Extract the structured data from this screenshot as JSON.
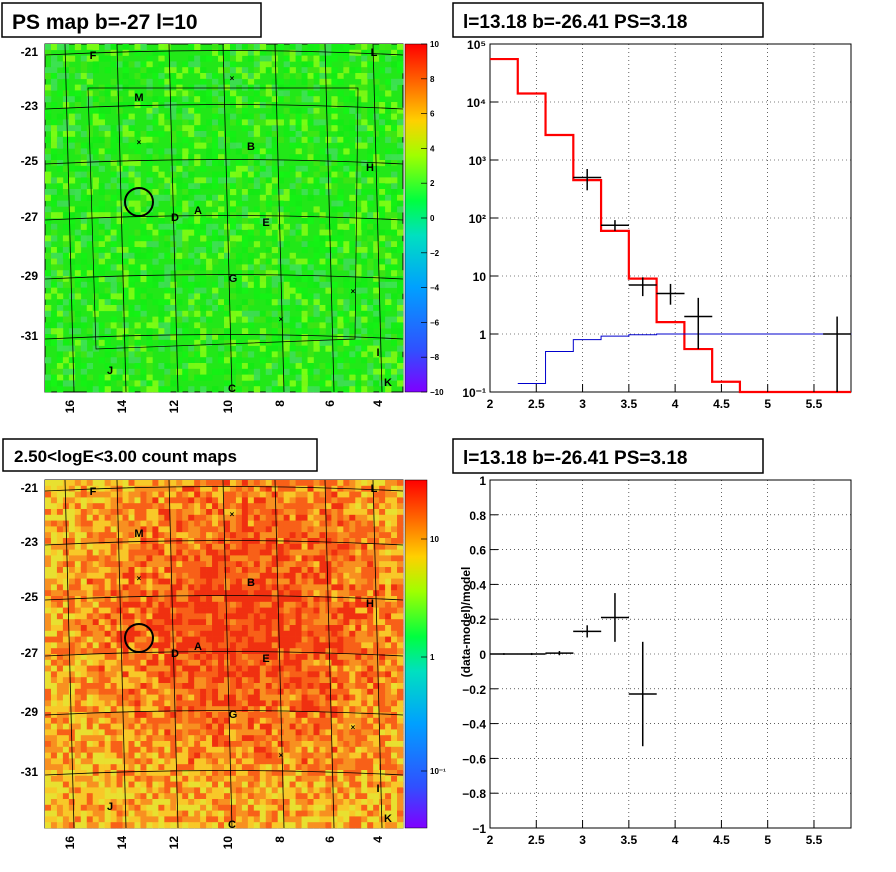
{
  "chart_data": [
    {
      "type": "heatmap",
      "title": "PS map b=-27 l=10",
      "x_ticks": [
        "16",
        "14",
        "12",
        "10",
        "8",
        "6",
        "4"
      ],
      "y_ticks": [
        "-21",
        "-23",
        "-25",
        "-27",
        "-29",
        "-31"
      ],
      "colorbar_ticks": [
        "10",
        "8",
        "6",
        "4",
        "2",
        "0",
        "−2",
        "−4",
        "−6",
        "−8",
        "−10"
      ],
      "zlim": [
        -10,
        10
      ],
      "source_labels": [
        "F",
        "L",
        "M",
        "B",
        "H",
        "D",
        "A",
        "E",
        "G",
        "I",
        "J",
        "C",
        "K"
      ]
    },
    {
      "type": "line",
      "title": "l=13.18 b=-26.41 PS=3.18",
      "y_scale": "log",
      "xlim": [
        2,
        5.9
      ],
      "ylim": [
        0.1,
        100000
      ],
      "x_ticks": [
        "2",
        "2.5",
        "3",
        "3.5",
        "4",
        "4.5",
        "5",
        "5.5"
      ],
      "y_ticks": [
        "10⁻¹",
        "1",
        "10",
        "10²",
        "10³",
        "10⁴",
        "10⁵"
      ],
      "series": [
        {
          "values": [
            [
              2.0,
              55000
            ],
            [
              2.3,
              14000
            ],
            [
              2.6,
              2700
            ],
            [
              2.9,
              450
            ],
            [
              3.2,
              60
            ],
            [
              3.5,
              9
            ],
            [
              3.8,
              1.6
            ],
            [
              4.1,
              0.55
            ],
            [
              4.4,
              0.15
            ],
            [
              4.7,
              0.1
            ],
            [
              5.9,
              0.1
            ]
          ],
          "color": "#ff0000"
        },
        {
          "values": [
            [
              2.3,
              0.14
            ],
            [
              2.6,
              0.5
            ],
            [
              2.9,
              0.8
            ],
            [
              3.2,
              0.92
            ],
            [
              3.5,
              0.97
            ],
            [
              3.8,
              1.0
            ],
            [
              4.1,
              1.0
            ],
            [
              5.9,
              1.02
            ]
          ],
          "color": "#0000cc"
        },
        {
          "values": [
            [
              3.05,
              500,
              300,
              700
            ],
            [
              3.35,
              75,
              60,
              92
            ],
            [
              3.65,
              7,
              4.5,
              9.5
            ],
            [
              3.95,
              5,
              3.2,
              7.3
            ],
            [
              4.25,
              2,
              0.55,
              4.2
            ],
            [
              5.75,
              1,
              0.1,
              2
            ]
          ],
          "color": "#000000"
        }
      ]
    },
    {
      "type": "heatmap",
      "title": "2.50<logE<3.00 count maps",
      "x_ticks": [
        "16",
        "14",
        "12",
        "10",
        "8",
        "6",
        "4"
      ],
      "y_ticks": [
        "-21",
        "-23",
        "-25",
        "-27",
        "-29",
        "-31"
      ],
      "colorbar_ticks": [
        "10",
        "1",
        "10⁻¹"
      ],
      "source_labels": [
        "F",
        "L",
        "M",
        "B",
        "H",
        "D",
        "A",
        "E",
        "G",
        "I",
        "J",
        "C",
        "K"
      ]
    },
    {
      "type": "scatter",
      "title": "l=13.18 b=-26.41 PS=3.18",
      "ylabel": "(data-model)/model",
      "xlim": [
        2,
        5.9
      ],
      "ylim": [
        -1,
        1
      ],
      "x_ticks": [
        "2",
        "2.5",
        "3",
        "3.5",
        "4",
        "4.5",
        "5",
        "5.5"
      ],
      "y_ticks": [
        "1",
        "0.8",
        "0.6",
        "0.4",
        "0.2",
        "0",
        "−0.2",
        "−0.4",
        "−0.6",
        "−0.8",
        "−1"
      ],
      "points": [
        [
          2.15,
          0.0,
          0.005
        ],
        [
          2.45,
          0.0,
          0.006
        ],
        [
          2.75,
          0.005,
          0.012
        ],
        [
          3.05,
          0.13,
          0.035
        ],
        [
          3.35,
          0.21,
          0.14
        ],
        [
          3.65,
          -0.23,
          0.3
        ]
      ]
    }
  ]
}
